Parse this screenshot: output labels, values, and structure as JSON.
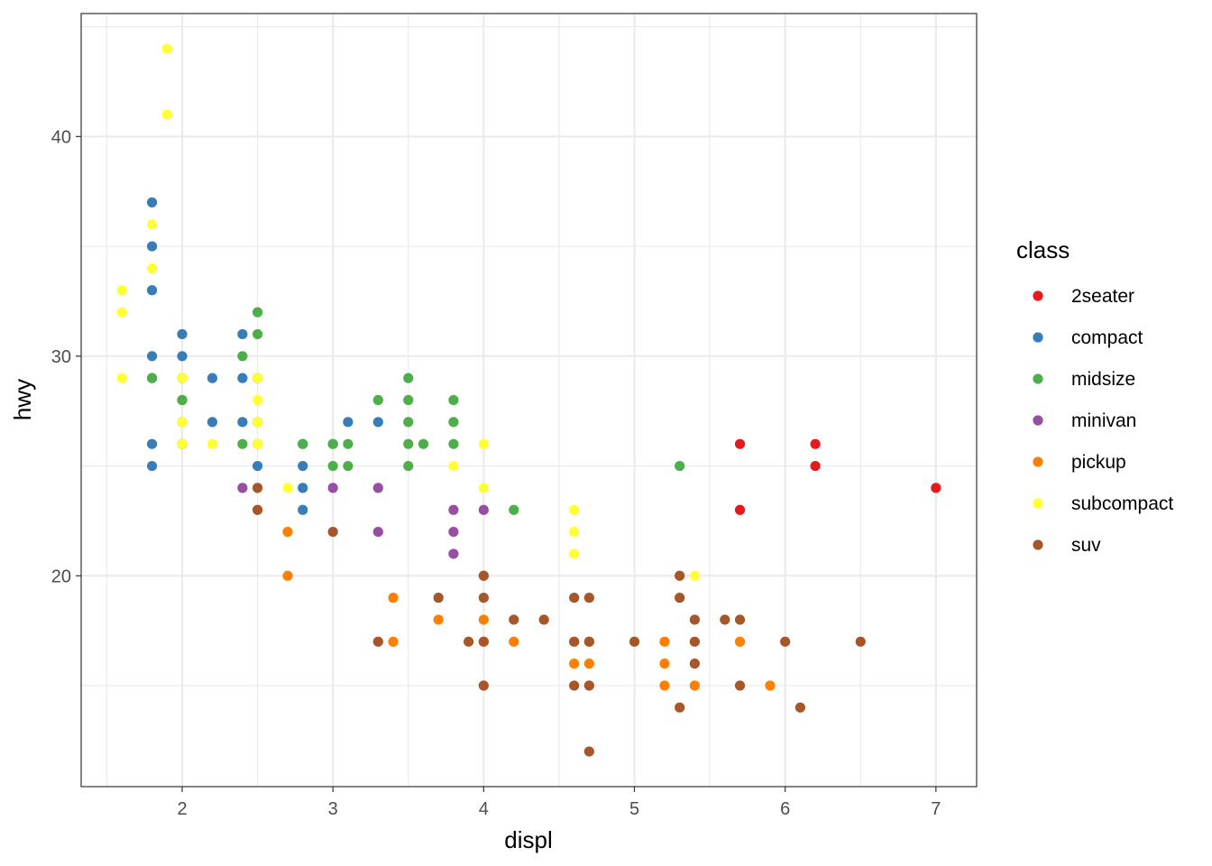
{
  "chart_data": {
    "type": "scatter",
    "xlabel": "displ",
    "ylabel": "hwy",
    "xlim": [
      1.33,
      7.27
    ],
    "ylim": [
      10.4,
      45.6
    ],
    "x_ticks": [
      2,
      3,
      4,
      5,
      6,
      7
    ],
    "y_ticks": [
      20,
      30,
      40
    ],
    "grid": true,
    "legend": {
      "title": "class",
      "placement": "right",
      "entries": [
        {
          "name": "2seater",
          "color": "#e41a1c"
        },
        {
          "name": "compact",
          "color": "#377eb8"
        },
        {
          "name": "midsize",
          "color": "#4daf4a"
        },
        {
          "name": "minivan",
          "color": "#984ea3"
        },
        {
          "name": "pickup",
          "color": "#ff7f00"
        },
        {
          "name": "subcompact",
          "color": "#ffff33"
        },
        {
          "name": "suv",
          "color": "#a65628"
        }
      ]
    },
    "series": [
      {
        "name": "2seater",
        "color": "#e41a1c",
        "points": [
          [
            5.7,
            26
          ],
          [
            5.7,
            23
          ],
          [
            6.2,
            26
          ],
          [
            6.2,
            25
          ],
          [
            7.0,
            24
          ]
        ]
      },
      {
        "name": "compact",
        "color": "#377eb8",
        "points": [
          [
            1.8,
            37
          ],
          [
            1.8,
            35
          ],
          [
            1.8,
            33
          ],
          [
            1.8,
            30
          ],
          [
            1.8,
            29
          ],
          [
            1.8,
            26
          ],
          [
            1.8,
            25
          ],
          [
            2.0,
            31
          ],
          [
            2.0,
            30
          ],
          [
            2.0,
            29
          ],
          [
            2.0,
            28
          ],
          [
            2.0,
            27
          ],
          [
            2.0,
            26
          ],
          [
            2.2,
            29
          ],
          [
            2.2,
            27
          ],
          [
            2.4,
            31
          ],
          [
            2.4,
            29
          ],
          [
            2.4,
            27
          ],
          [
            2.5,
            29
          ],
          [
            2.5,
            27
          ],
          [
            2.5,
            26
          ],
          [
            2.5,
            25
          ],
          [
            2.8,
            26
          ],
          [
            2.8,
            25
          ],
          [
            2.8,
            24
          ],
          [
            2.8,
            23
          ],
          [
            3.0,
            26
          ],
          [
            3.1,
            27
          ],
          [
            3.3,
            27
          ]
        ]
      },
      {
        "name": "midsize",
        "color": "#4daf4a",
        "points": [
          [
            1.8,
            29
          ],
          [
            2.0,
            29
          ],
          [
            2.0,
            28
          ],
          [
            2.0,
            26
          ],
          [
            2.4,
            30
          ],
          [
            2.4,
            26
          ],
          [
            2.5,
            32
          ],
          [
            2.5,
            31
          ],
          [
            2.5,
            29
          ],
          [
            2.8,
            26
          ],
          [
            3.0,
            26
          ],
          [
            3.0,
            25
          ],
          [
            3.1,
            26
          ],
          [
            3.1,
            25
          ],
          [
            3.3,
            28
          ],
          [
            3.5,
            29
          ],
          [
            3.5,
            28
          ],
          [
            3.5,
            27
          ],
          [
            3.5,
            26
          ],
          [
            3.5,
            25
          ],
          [
            3.6,
            26
          ],
          [
            3.8,
            28
          ],
          [
            3.8,
            27
          ],
          [
            3.8,
            26
          ],
          [
            4.2,
            23
          ],
          [
            5.3,
            25
          ]
        ]
      },
      {
        "name": "minivan",
        "color": "#984ea3",
        "points": [
          [
            2.4,
            24
          ],
          [
            3.0,
            24
          ],
          [
            3.3,
            24
          ],
          [
            3.3,
            22
          ],
          [
            3.8,
            23
          ],
          [
            3.8,
            22
          ],
          [
            3.8,
            21
          ],
          [
            4.0,
            23
          ]
        ]
      },
      {
        "name": "pickup",
        "color": "#ff7f00",
        "points": [
          [
            2.7,
            22
          ],
          [
            2.7,
            20
          ],
          [
            3.4,
            19
          ],
          [
            3.4,
            17
          ],
          [
            3.7,
            18
          ],
          [
            4.0,
            20
          ],
          [
            4.0,
            18
          ],
          [
            4.0,
            17
          ],
          [
            4.2,
            17
          ],
          [
            4.6,
            17
          ],
          [
            4.6,
            16
          ],
          [
            4.7,
            17
          ],
          [
            4.7,
            16
          ],
          [
            5.2,
            17
          ],
          [
            5.2,
            16
          ],
          [
            5.2,
            15
          ],
          [
            5.4,
            15
          ],
          [
            5.7,
            17
          ],
          [
            5.9,
            15
          ]
        ]
      },
      {
        "name": "subcompact",
        "color": "#ffff33",
        "points": [
          [
            1.6,
            33
          ],
          [
            1.6,
            32
          ],
          [
            1.6,
            29
          ],
          [
            1.8,
            36
          ],
          [
            1.8,
            34
          ],
          [
            1.9,
            44
          ],
          [
            1.9,
            41
          ],
          [
            2.0,
            29
          ],
          [
            2.0,
            27
          ],
          [
            2.0,
            26
          ],
          [
            2.2,
            26
          ],
          [
            2.5,
            29
          ],
          [
            2.5,
            28
          ],
          [
            2.5,
            27
          ],
          [
            2.5,
            26
          ],
          [
            2.7,
            24
          ],
          [
            3.8,
            25
          ],
          [
            4.0,
            26
          ],
          [
            4.0,
            24
          ],
          [
            4.6,
            23
          ],
          [
            4.6,
            22
          ],
          [
            4.6,
            21
          ],
          [
            5.4,
            20
          ]
        ]
      },
      {
        "name": "suv",
        "color": "#a65628",
        "points": [
          [
            2.5,
            24
          ],
          [
            2.5,
            23
          ],
          [
            3.0,
            22
          ],
          [
            3.3,
            17
          ],
          [
            3.7,
            19
          ],
          [
            3.9,
            17
          ],
          [
            4.0,
            20
          ],
          [
            4.0,
            19
          ],
          [
            4.0,
            17
          ],
          [
            4.0,
            15
          ],
          [
            4.2,
            18
          ],
          [
            4.4,
            18
          ],
          [
            4.6,
            19
          ],
          [
            4.6,
            17
          ],
          [
            4.6,
            15
          ],
          [
            4.7,
            19
          ],
          [
            4.7,
            17
          ],
          [
            4.7,
            15
          ],
          [
            4.7,
            12
          ],
          [
            5.0,
            17
          ],
          [
            5.3,
            20
          ],
          [
            5.3,
            19
          ],
          [
            5.3,
            14
          ],
          [
            5.4,
            18
          ],
          [
            5.4,
            17
          ],
          [
            5.4,
            16
          ],
          [
            5.6,
            18
          ],
          [
            5.7,
            18
          ],
          [
            5.7,
            15
          ],
          [
            6.0,
            17
          ],
          [
            6.1,
            14
          ],
          [
            6.5,
            17
          ]
        ]
      }
    ]
  }
}
